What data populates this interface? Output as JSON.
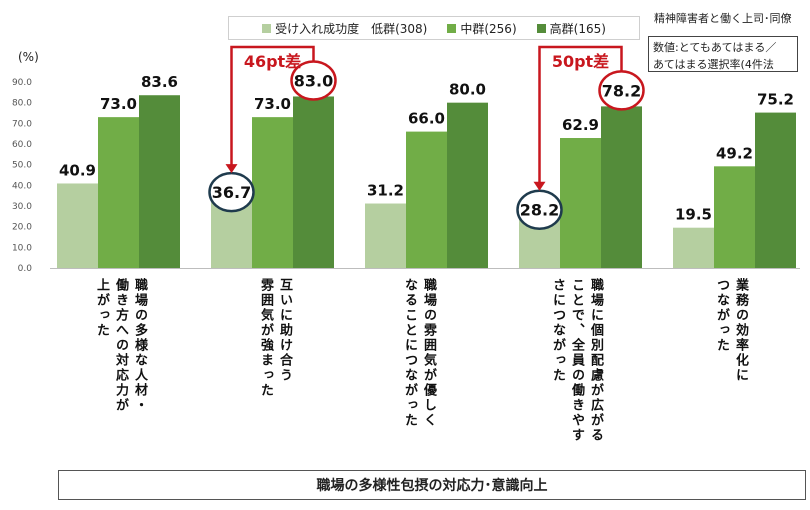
{
  "unit_label": "(%)",
  "top_right_title": "精神障害者と働く上司･同僚",
  "note": {
    "line1": "数値:とてもあてはまる／",
    "line2": "あてはまる選択率(4件法"
  },
  "bottom_title": "職場の多様性包摂の対応力･意識向上",
  "colors": {
    "low": "#b5cfa0",
    "mid": "#71ad47",
    "high": "#548c3a",
    "callout": "#c8171e",
    "circle_navy": "#1f3b4d"
  },
  "chart_data": {
    "type": "bar",
    "ylim": [
      0,
      90
    ],
    "yticks": [
      "0.0",
      "10.0",
      "20.0",
      "30.0",
      "40.0",
      "50.0",
      "60.0",
      "70.0",
      "80.0",
      "90.0"
    ],
    "legend_position": "top-center",
    "categories": [
      "職場の多様な人材・\n働き方への対応力が\n上がった",
      "互いに助け合う\n雰囲気が強まった",
      "職場の雰囲気が優しく\nなることにつながった",
      "職場に個別配慮が広がる\nことで、全員の働きやす\nさにつながった",
      "業務の効率化に\nつながった"
    ],
    "series": [
      {
        "name": "受け入れ成功度　低群(308)",
        "values": [
          40.9,
          36.7,
          31.2,
          28.2,
          19.5
        ]
      },
      {
        "name": "中群(256)",
        "values": [
          73.0,
          73.0,
          66.0,
          62.9,
          49.2
        ]
      },
      {
        "name": "高群(165)",
        "values": [
          83.6,
          83.0,
          80.0,
          78.2,
          75.2
        ]
      }
    ],
    "value_labels": [
      [
        "40.9",
        "73.0",
        "83.6"
      ],
      [
        "36.7",
        "73.0",
        "83.0"
      ],
      [
        "31.2",
        "66.0",
        "80.0"
      ],
      [
        "28.2",
        "62.9",
        "78.2"
      ],
      [
        "19.5",
        "49.2",
        "75.2"
      ]
    ],
    "annotations": [
      {
        "category_index": 1,
        "text": "46pt差"
      },
      {
        "category_index": 3,
        "text": "50pt差"
      }
    ]
  }
}
